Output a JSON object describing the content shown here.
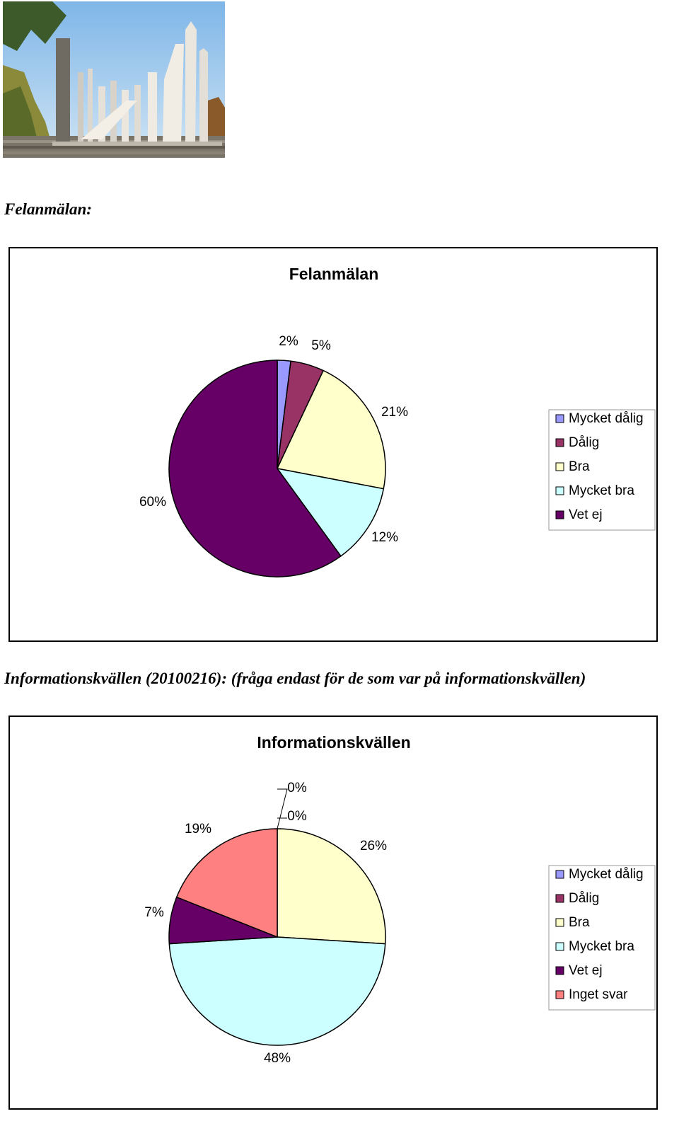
{
  "photo": {
    "icon": "monument-photo-icon"
  },
  "sections": [
    {
      "heading": "Felanmälan:"
    },
    {
      "heading": "Informationskvällen (20100216): (fråga endast för de som var på informationskvällen)"
    }
  ],
  "colors": {
    "mycket_dalig": "#9999FF",
    "dalig": "#993366",
    "bra": "#FFFFCC",
    "mycket_bra": "#CCFFFF",
    "vet_ej": "#660066",
    "inget_svar": "#FF8080"
  },
  "chart_data": [
    {
      "type": "pie",
      "title": "Felanmälan",
      "categories": [
        "Mycket dålig",
        "Dålig",
        "Bra",
        "Mycket bra",
        "Vet ej"
      ],
      "values": [
        2,
        5,
        21,
        12,
        60
      ],
      "labels": [
        "2%",
        "5%",
        "21%",
        "12%",
        "60%"
      ],
      "colors": [
        "#9999FF",
        "#993366",
        "#FFFFCC",
        "#CCFFFF",
        "#660066"
      ],
      "legend": "right"
    },
    {
      "type": "pie",
      "title": "Informationskvällen",
      "categories": [
        "Mycket dålig",
        "Dålig",
        "Bra",
        "Mycket bra",
        "Vet ej",
        "Inget svar"
      ],
      "values": [
        0,
        0,
        26,
        48,
        7,
        19
      ],
      "labels": [
        "0%",
        "0%",
        "26%",
        "48%",
        "7%",
        "19%"
      ],
      "colors": [
        "#9999FF",
        "#993366",
        "#FFFFCC",
        "#CCFFFF",
        "#660066",
        "#FF8080"
      ],
      "legend": "right"
    }
  ]
}
